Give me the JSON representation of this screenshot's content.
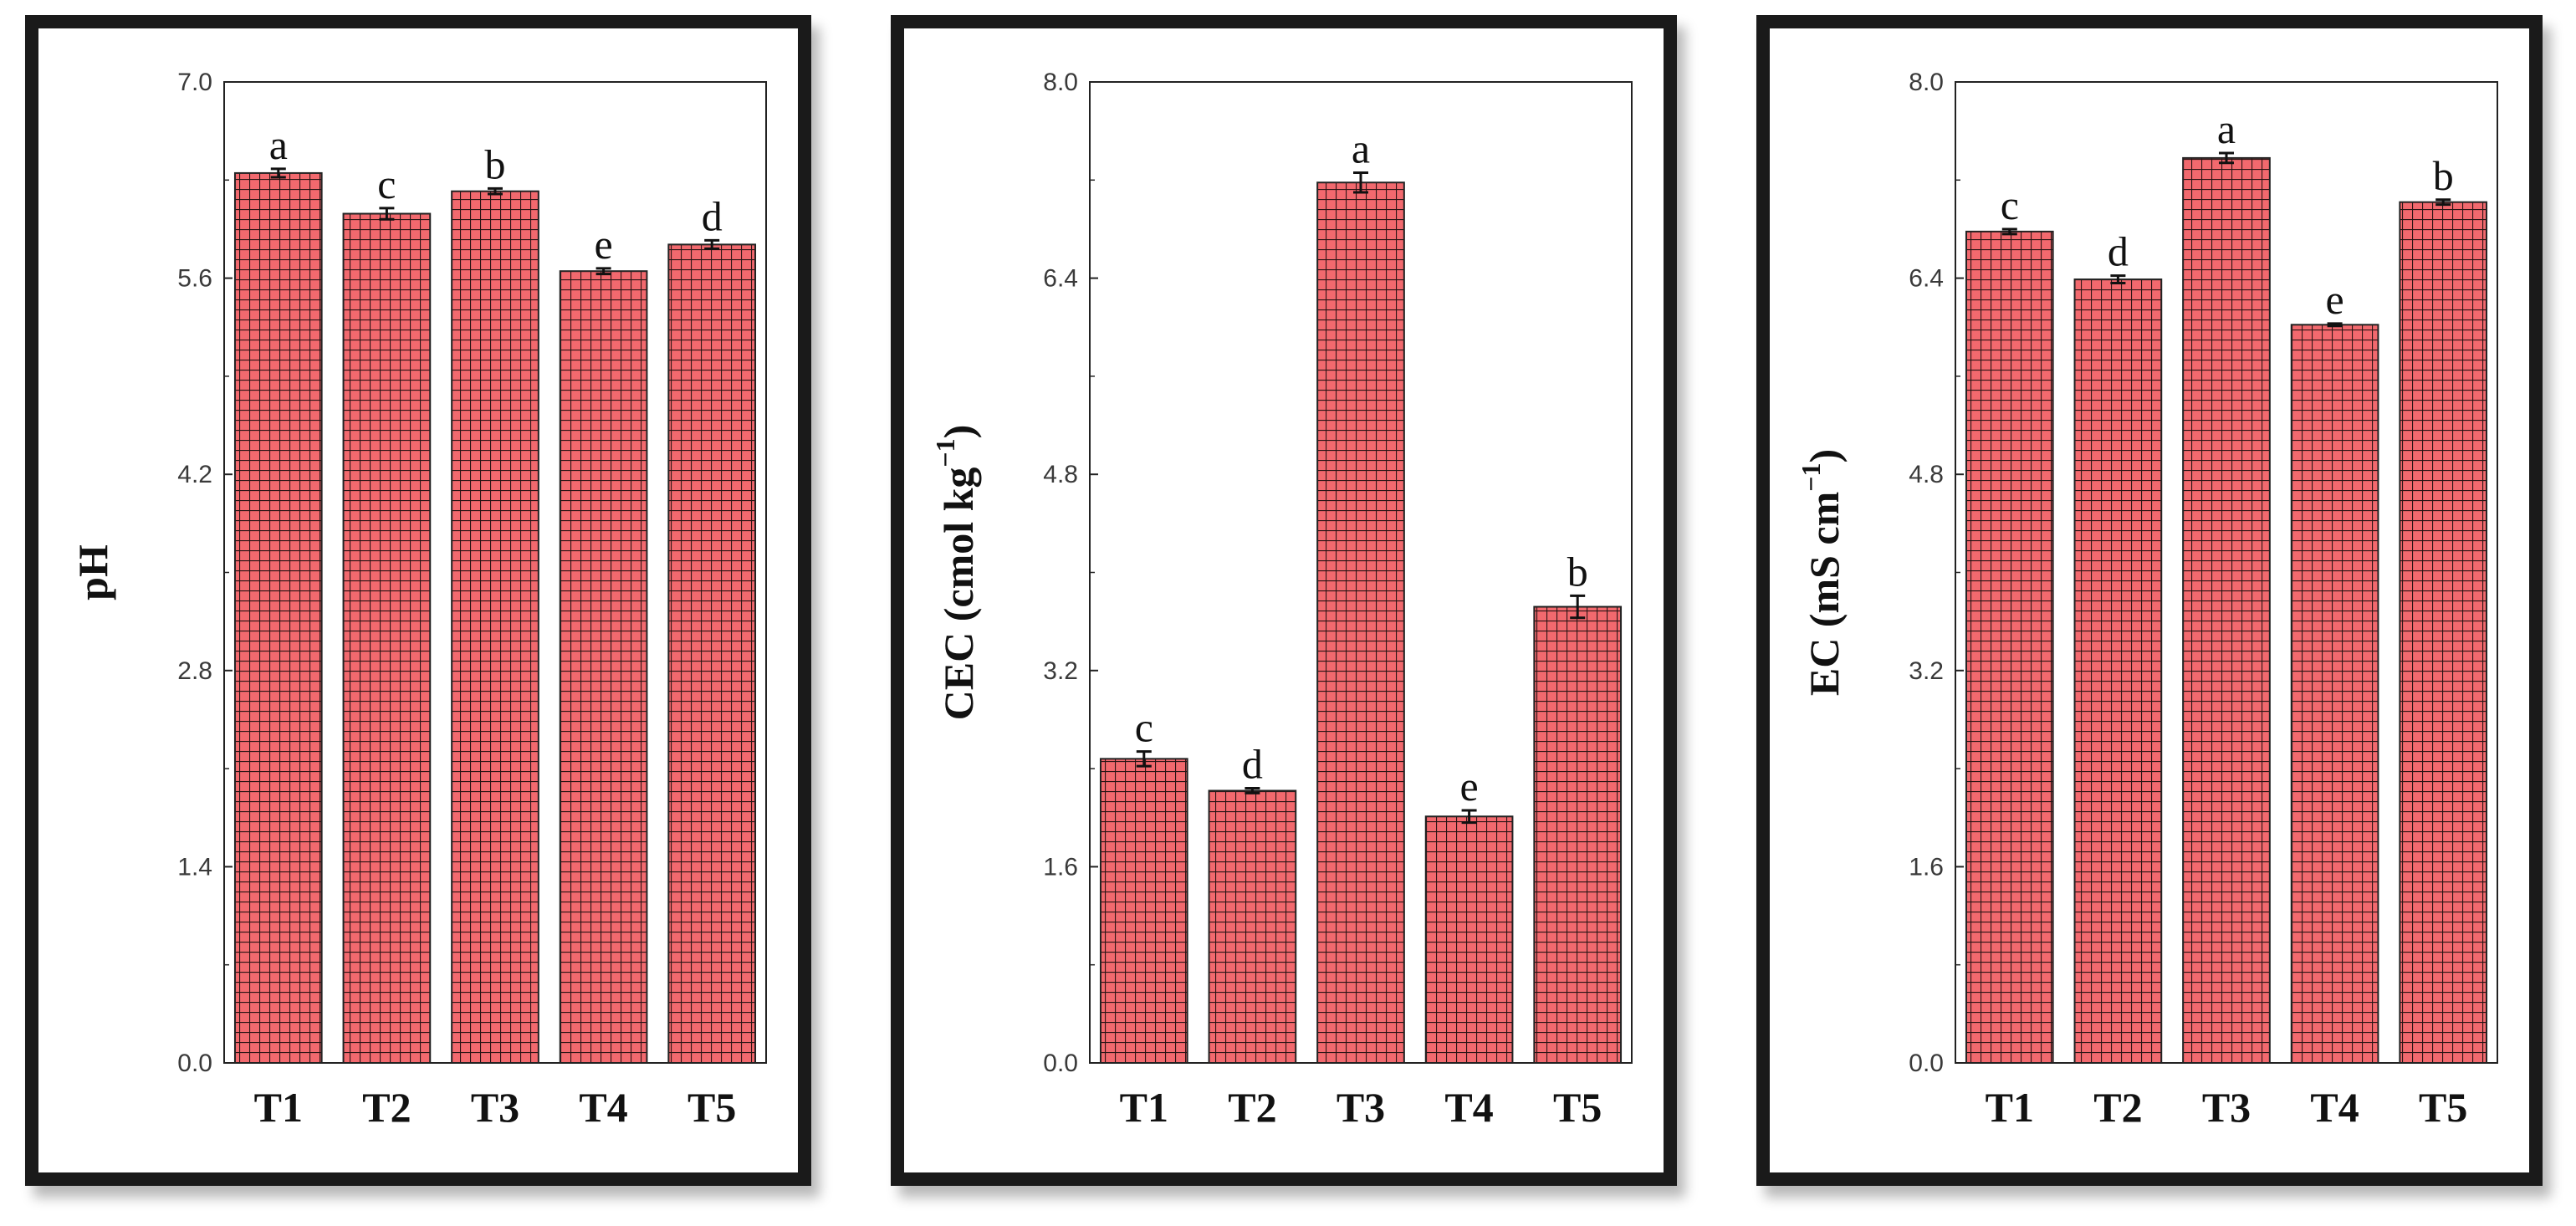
{
  "chart_data": [
    {
      "type": "bar",
      "id": "ph",
      "categories": [
        "T1",
        "T2",
        "T3",
        "T4",
        "T5"
      ],
      "values": [
        6.35,
        6.06,
        6.22,
        5.65,
        5.84
      ],
      "errors": [
        0.03,
        0.04,
        0.02,
        0.02,
        0.03
      ],
      "letters": [
        "a",
        "c",
        "b",
        "e",
        "d"
      ],
      "ylabel": "pH",
      "ylim": [
        0,
        7.0
      ],
      "yticks": [
        "0.0",
        "1.4",
        "2.8",
        "4.2",
        "5.6",
        "7.0"
      ],
      "grid": false
    },
    {
      "type": "bar",
      "id": "cec",
      "categories": [
        "T1",
        "T2",
        "T3",
        "T4",
        "T5"
      ],
      "values": [
        2.48,
        2.22,
        7.18,
        2.01,
        3.72
      ],
      "errors": [
        0.06,
        0.02,
        0.08,
        0.05,
        0.09
      ],
      "letters": [
        "c",
        "d",
        "a",
        "e",
        "b"
      ],
      "ylabel": "CEC (cmol kg",
      "ylabel_sup": "−1",
      "ylabel_end": ")",
      "ylim": [
        0,
        8.0
      ],
      "yticks": [
        "0.0",
        "1.6",
        "3.2",
        "4.8",
        "6.4",
        "8.0"
      ],
      "grid": false
    },
    {
      "type": "bar",
      "id": "ec",
      "categories": [
        "T1",
        "T2",
        "T3",
        "T4",
        "T5"
      ],
      "values": [
        6.78,
        6.39,
        7.38,
        6.02,
        7.02
      ],
      "errors": [
        0.02,
        0.03,
        0.04,
        0.01,
        0.02
      ],
      "letters": [
        "c",
        "d",
        "a",
        "e",
        "b"
      ],
      "ylabel": "EC (mS cm",
      "ylabel_sup": "−1",
      "ylabel_end": ")",
      "ylim": [
        0,
        8.0
      ],
      "yticks": [
        "0.0",
        "1.6",
        "3.2",
        "4.8",
        "6.4",
        "8.0"
      ],
      "grid": false
    }
  ],
  "style": {
    "bar_fill": "#f2696e",
    "bar_grid": "#2a1414",
    "axis_color": "#222222",
    "tick_text": "#3a3a3a"
  }
}
